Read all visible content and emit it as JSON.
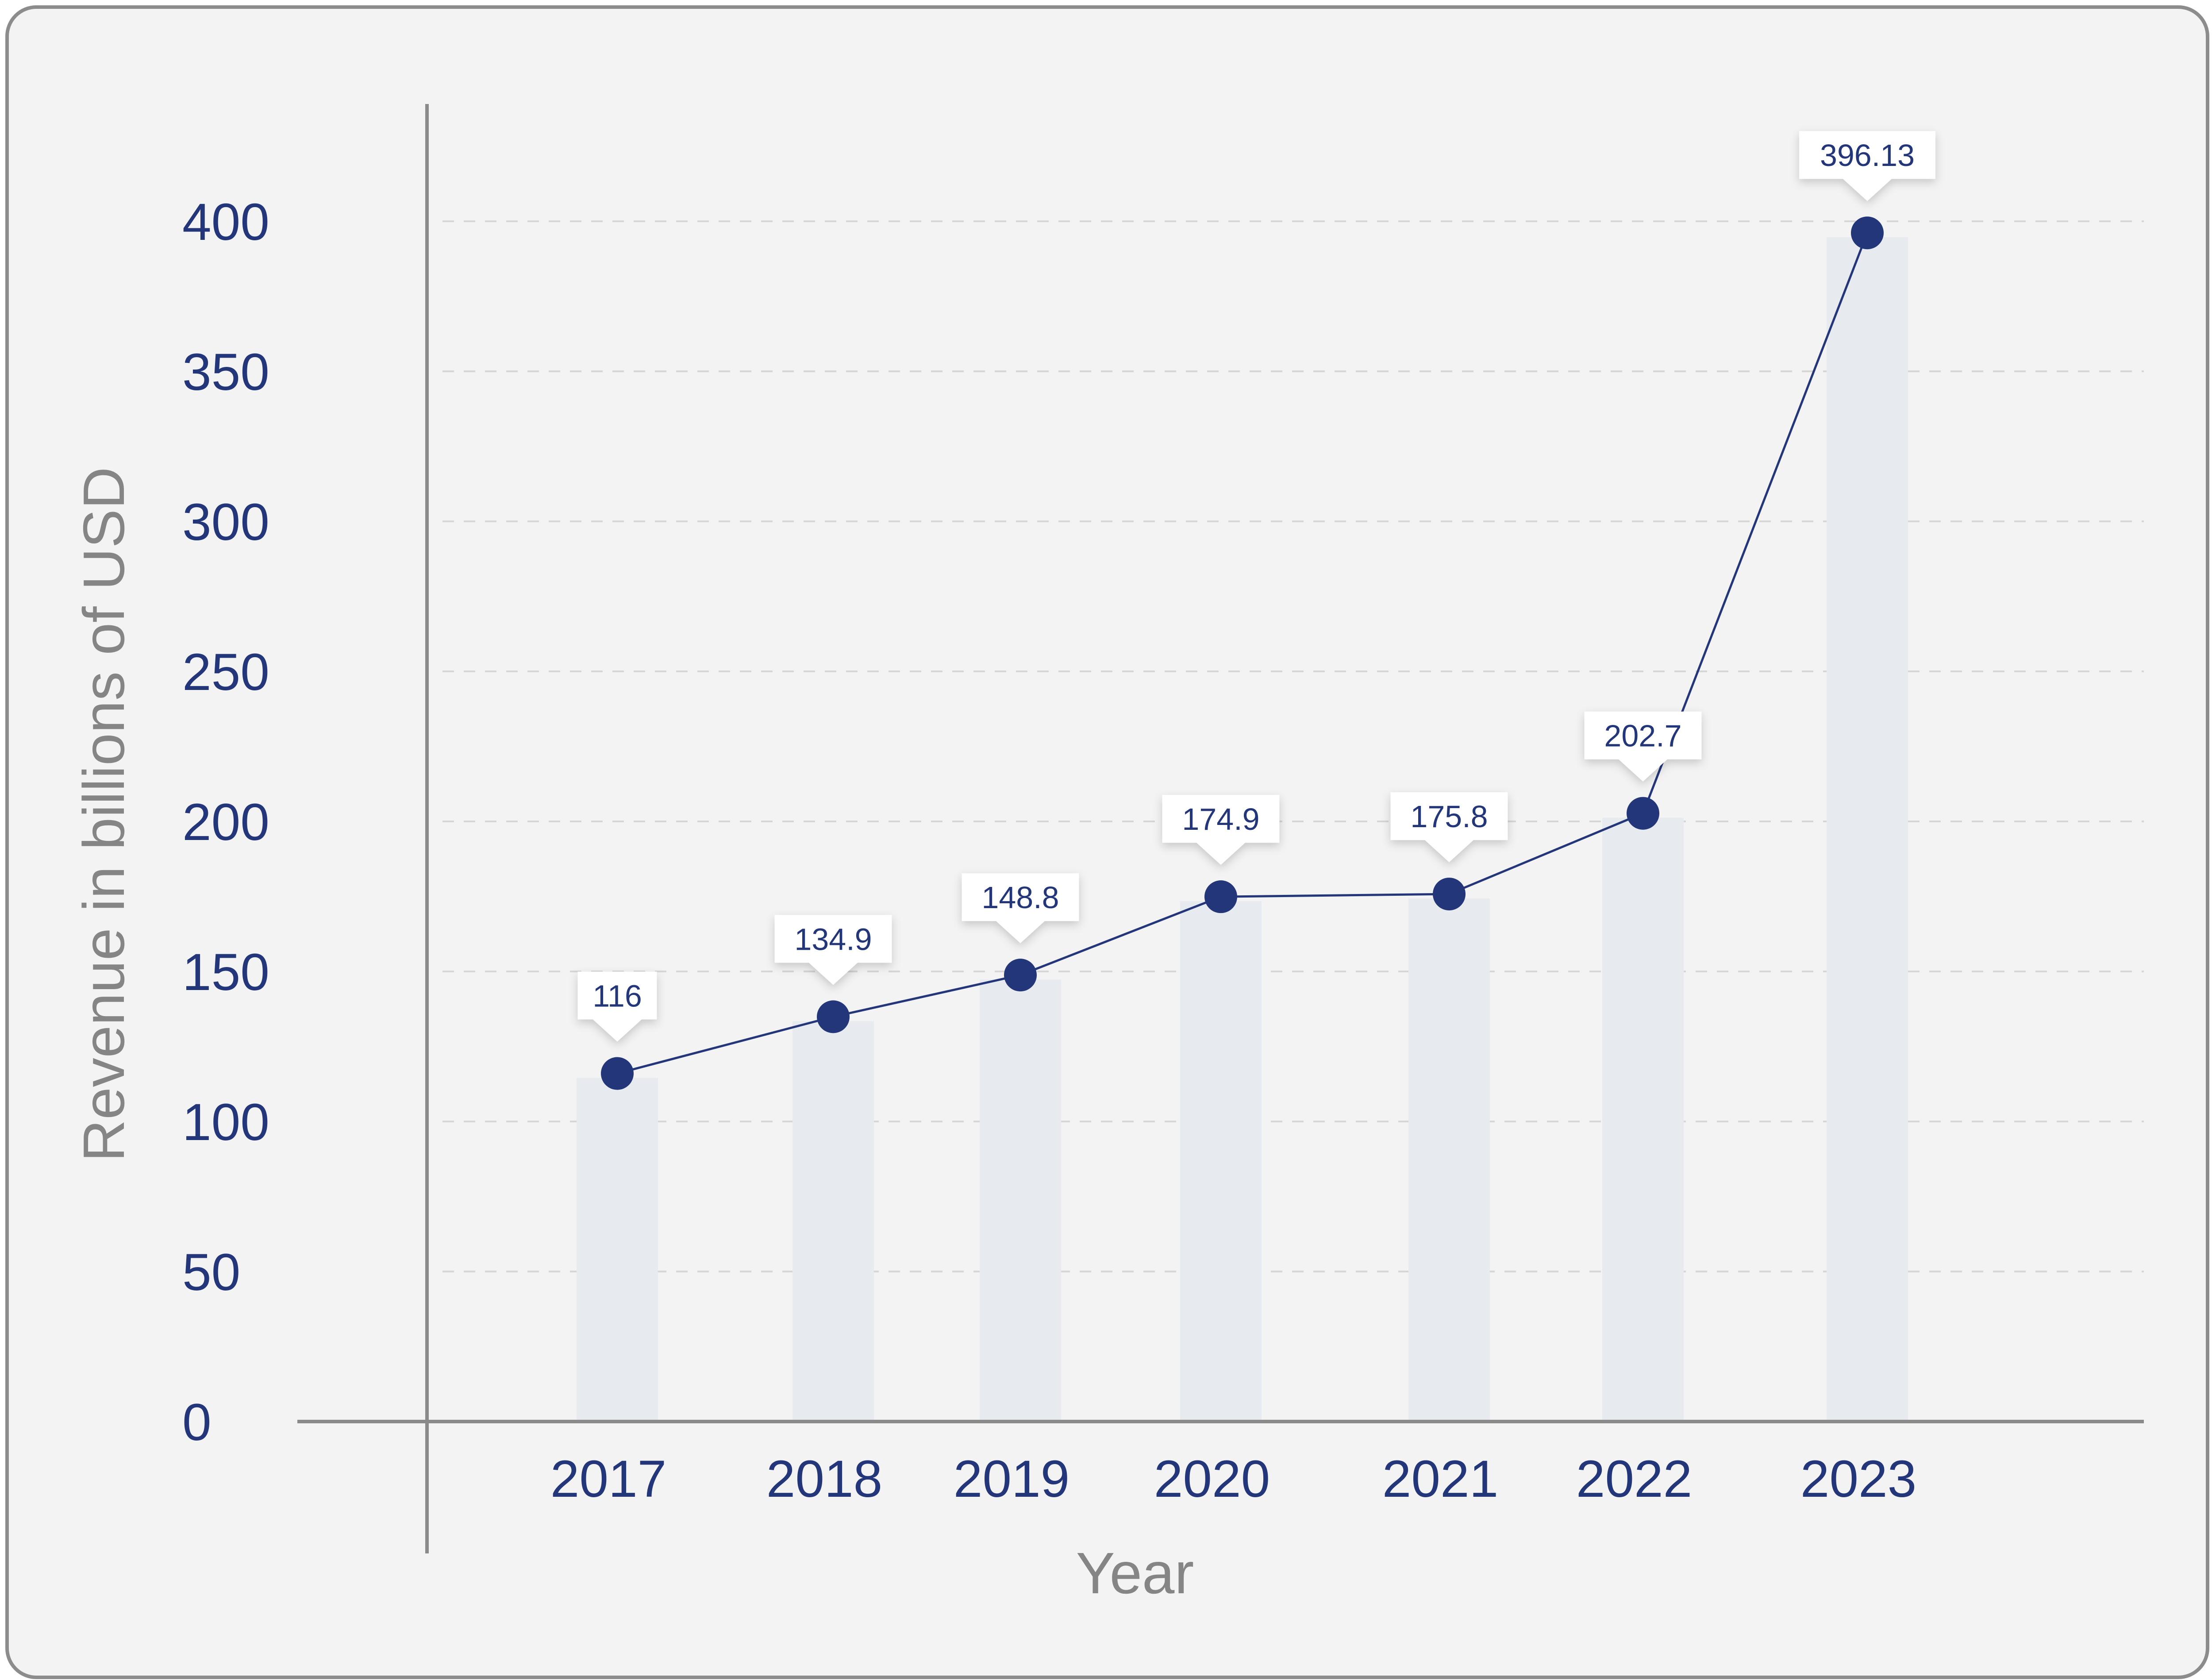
{
  "chart_data": {
    "type": "line",
    "title": "",
    "xlabel": "Year",
    "ylabel": "Revenue in billions of USD",
    "categories": [
      "2017",
      "2018",
      "2019",
      "2020",
      "2021",
      "2022",
      "2023"
    ],
    "series": [
      {
        "values": [
          116,
          134.9,
          148.8,
          174.9,
          175.8,
          202.7,
          396.13
        ],
        "data_labels": [
          "116",
          "134.9",
          "148.8",
          "174.9",
          "175.8",
          "202.7",
          "396.13"
        ]
      }
    ],
    "y_ticks": [
      "0",
      "50",
      "100",
      "150",
      "200",
      "250",
      "300",
      "350",
      "400"
    ],
    "ylim": [
      0,
      400
    ],
    "background_bars": true,
    "grid": "horizontal dashed",
    "colors": {
      "line": "#24367a",
      "marker": "#24367a",
      "bar": "#e7ebf0",
      "card_background": "#f3f3f3",
      "card_border": "#8c8c8c",
      "axis": "#8a8a8a",
      "grid": "#d6d6d6",
      "tick_text": "#24367a",
      "axis_title_text": "#858585"
    }
  }
}
